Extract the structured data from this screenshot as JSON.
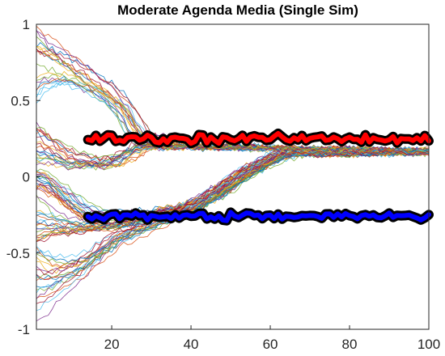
{
  "chart_data": {
    "type": "line",
    "title": "Moderate Agenda Media (Single Sim)",
    "xlabel": "",
    "ylabel": "",
    "xlim": [
      1,
      100
    ],
    "ylim": [
      -1,
      1
    ],
    "x_ticks": [
      20,
      40,
      60,
      80,
      100
    ],
    "y_ticks": [
      -1,
      -0.5,
      0,
      0.5,
      1
    ],
    "x_tick_labels": [
      "20",
      "40",
      "60",
      "80",
      "100"
    ],
    "y_tick_labels": [
      "-1",
      "-0.5",
      "0",
      "0.5",
      "1"
    ],
    "grid": false,
    "legend": "none",
    "agents": {
      "count": 100,
      "x_start": 1,
      "x_end": 100,
      "initial_range": [
        -1,
        1
      ],
      "groups": [
        {
          "init": [
            0.47,
            1.0
          ],
          "path": [
            [
              1,
              0.75
            ],
            [
              12,
              0.62
            ],
            [
              22,
              0.45
            ],
            [
              28,
              0.2
            ],
            [
              100,
              0.17
            ]
          ]
        },
        {
          "init": [
            0.05,
            0.35
          ],
          "path": [
            [
              1,
              0.2
            ],
            [
              8,
              0.05
            ],
            [
              20,
              0.07
            ],
            [
              28,
              0.2
            ],
            [
              100,
              0.17
            ]
          ]
        },
        {
          "init": [
            -0.1,
            0.05
          ],
          "path": [
            [
              1,
              0.0
            ],
            [
              6,
              -0.2
            ],
            [
              14,
              -0.33
            ],
            [
              30,
              -0.25
            ],
            [
              45,
              -0.15
            ],
            [
              55,
              0.05
            ],
            [
              65,
              0.15
            ],
            [
              100,
              0.16
            ]
          ]
        },
        {
          "init": [
            -0.45,
            -0.1
          ],
          "path": [
            [
              1,
              -0.3
            ],
            [
              8,
              -0.34
            ],
            [
              20,
              -0.33
            ],
            [
              40,
              -0.2
            ],
            [
              52,
              0.0
            ],
            [
              62,
              0.15
            ],
            [
              100,
              0.16
            ]
          ]
        },
        {
          "init": [
            -1.0,
            -0.45
          ],
          "path": [
            [
              1,
              -0.72
            ],
            [
              12,
              -0.55
            ],
            [
              20,
              -0.38
            ],
            [
              40,
              -0.2
            ],
            [
              52,
              0.0
            ],
            [
              62,
              0.15
            ],
            [
              100,
              0.16
            ]
          ]
        }
      ]
    },
    "series": [
      {
        "role": "media",
        "color": "#ff0000",
        "x_start": 14,
        "x_end": 100,
        "level": 0.25,
        "noise": 0.025
      },
      {
        "role": "media",
        "color": "#0000ff",
        "x_start": 14,
        "x_end": 100,
        "level": -0.26,
        "noise": 0.025
      }
    ],
    "colors": {
      "agents": [
        "#0072bd",
        "#d95319",
        "#edb120",
        "#7e2f8e",
        "#77ac30",
        "#4dbeee",
        "#a2142f"
      ],
      "media_outline": "#000000"
    }
  }
}
